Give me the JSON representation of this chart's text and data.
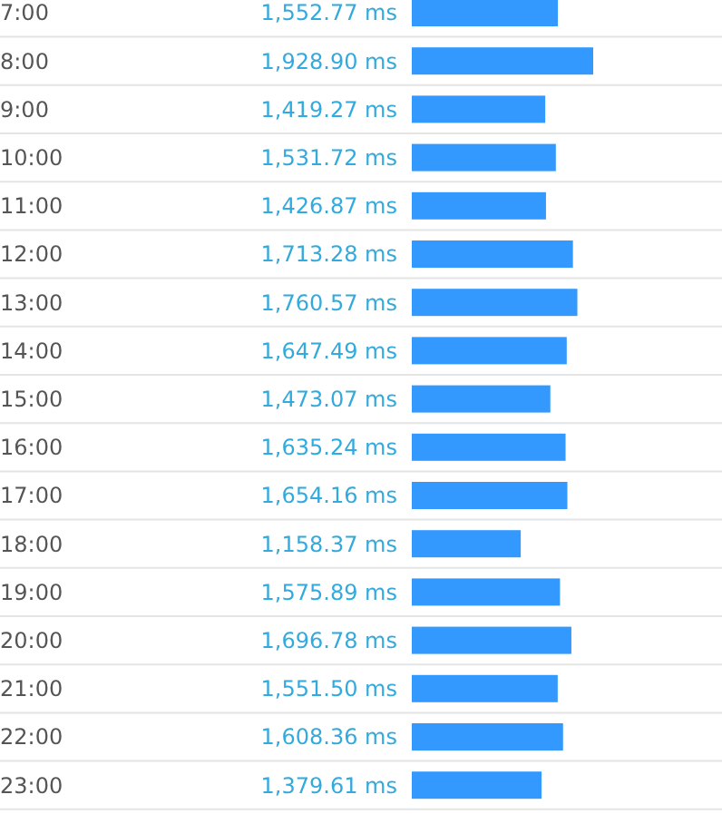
{
  "chart_data": {
    "type": "bar",
    "orientation": "horizontal",
    "categories": [
      "7:00",
      "8:00",
      "9:00",
      "10:00",
      "11:00",
      "12:00",
      "13:00",
      "14:00",
      "15:00",
      "16:00",
      "17:00",
      "18:00",
      "19:00",
      "20:00",
      "21:00",
      "22:00",
      "23:00"
    ],
    "values": [
      1552.77,
      1928.9,
      1419.27,
      1531.72,
      1426.87,
      1713.28,
      1760.57,
      1647.49,
      1473.07,
      1635.24,
      1654.16,
      1158.37,
      1575.89,
      1696.78,
      1551.5,
      1608.36,
      1379.61
    ],
    "value_labels": [
      "1,552.77 ms",
      "1,928.90 ms",
      "1,419.27 ms",
      "1,531.72 ms",
      "1,426.87 ms",
      "1,713.28 ms",
      "1,760.57 ms",
      "1,647.49 ms",
      "1,473.07 ms",
      "1,635.24 ms",
      "1,654.16 ms",
      "1,158.37 ms",
      "1,575.89 ms",
      "1,696.78 ms",
      "1,551.50 ms",
      "1,608.36 ms",
      "1,379.61 ms"
    ],
    "color": "#3399ff"
  }
}
